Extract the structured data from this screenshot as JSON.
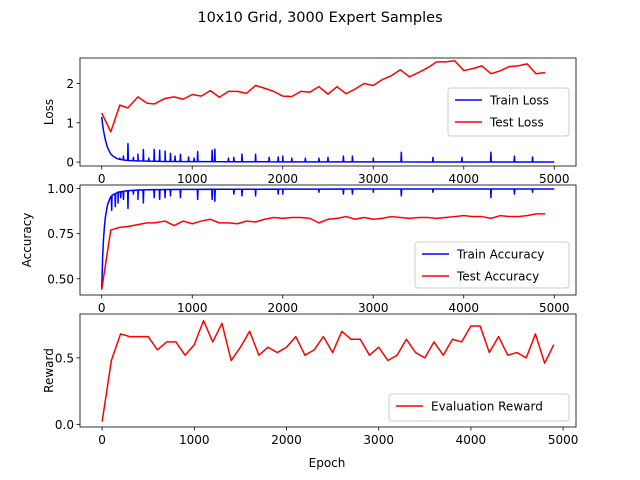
{
  "figure": {
    "title": "10x10 Grid, 3000 Expert Samples"
  },
  "chart_data": [
    {
      "type": "line",
      "ylabel": "Loss",
      "xlim": [
        -240,
        5240
      ],
      "ylim": [
        -0.1,
        2.65
      ],
      "xticks": [
        0,
        1000,
        2000,
        3000,
        4000,
        5000
      ],
      "yticks": [
        0,
        1,
        2
      ],
      "show_xticklabels": true,
      "legend_position": "center-right",
      "series": [
        {
          "name": "Train Loss",
          "color": "#0000ff",
          "style": "spiky_decay",
          "x": [
            0,
            10,
            20,
            30,
            40,
            50,
            60,
            70,
            80,
            90,
            100,
            120,
            140,
            160,
            180,
            200,
            250,
            300,
            400,
            500,
            600,
            700,
            800,
            1000,
            1500,
            2000,
            3000,
            4000,
            5000
          ],
          "y": [
            1.15,
            0.95,
            0.8,
            0.68,
            0.57,
            0.48,
            0.4,
            0.34,
            0.29,
            0.25,
            0.21,
            0.16,
            0.13,
            0.1,
            0.08,
            0.07,
            0.05,
            0.04,
            0.03,
            0.025,
            0.02,
            0.016,
            0.014,
            0.012,
            0.008,
            0.006,
            0.004,
            0.003,
            0.002
          ],
          "spikes": [
            {
              "x": 150,
              "y": 0.12
            },
            {
              "x": 200,
              "y": 0.1
            },
            {
              "x": 240,
              "y": 0.15
            },
            {
              "x": 290,
              "y": 0.47
            },
            {
              "x": 350,
              "y": 0.12
            },
            {
              "x": 400,
              "y": 0.2
            },
            {
              "x": 460,
              "y": 0.32
            },
            {
              "x": 520,
              "y": 0.1
            },
            {
              "x": 580,
              "y": 0.32
            },
            {
              "x": 640,
              "y": 0.3
            },
            {
              "x": 700,
              "y": 0.28
            },
            {
              "x": 760,
              "y": 0.22
            },
            {
              "x": 810,
              "y": 0.15
            },
            {
              "x": 870,
              "y": 0.2
            },
            {
              "x": 960,
              "y": 0.13
            },
            {
              "x": 1020,
              "y": 0.1
            },
            {
              "x": 1060,
              "y": 0.27
            },
            {
              "x": 1220,
              "y": 0.3
            },
            {
              "x": 1250,
              "y": 0.33
            },
            {
              "x": 1400,
              "y": 0.1
            },
            {
              "x": 1460,
              "y": 0.12
            },
            {
              "x": 1550,
              "y": 0.2
            },
            {
              "x": 1700,
              "y": 0.2
            },
            {
              "x": 1850,
              "y": 0.12
            },
            {
              "x": 1950,
              "y": 0.13
            },
            {
              "x": 2000,
              "y": 0.15
            },
            {
              "x": 2100,
              "y": 0.1
            },
            {
              "x": 2250,
              "y": 0.1
            },
            {
              "x": 2400,
              "y": 0.1
            },
            {
              "x": 2500,
              "y": 0.12
            },
            {
              "x": 2670,
              "y": 0.15
            },
            {
              "x": 2770,
              "y": 0.15
            },
            {
              "x": 3000,
              "y": 0.1
            },
            {
              "x": 3310,
              "y": 0.25
            },
            {
              "x": 3660,
              "y": 0.12
            },
            {
              "x": 3980,
              "y": 0.12
            },
            {
              "x": 4300,
              "y": 0.25
            },
            {
              "x": 4560,
              "y": 0.15
            },
            {
              "x": 4760,
              "y": 0.13
            }
          ]
        },
        {
          "name": "Test Loss",
          "color": "#ff0000",
          "style": "line",
          "x": [
            0,
            100,
            200,
            290,
            400,
            500,
            580,
            700,
            800,
            900,
            1000,
            1100,
            1200,
            1300,
            1400,
            1500,
            1600,
            1700,
            1800,
            1900,
            2000,
            2100,
            2200,
            2300,
            2400,
            2500,
            2600,
            2700,
            2800,
            2900,
            3000,
            3100,
            3200,
            3300,
            3400,
            3500,
            3600,
            3700,
            3800,
            3900,
            4000,
            4100,
            4200,
            4300,
            4400,
            4500,
            4600,
            4700,
            4800,
            4900
          ],
          "y": [
            1.25,
            0.77,
            1.45,
            1.38,
            1.66,
            1.5,
            1.48,
            1.62,
            1.66,
            1.6,
            1.72,
            1.68,
            1.82,
            1.65,
            1.8,
            1.8,
            1.75,
            1.95,
            1.88,
            1.8,
            1.68,
            1.67,
            1.8,
            1.78,
            1.92,
            1.73,
            1.92,
            1.74,
            1.86,
            2.0,
            1.95,
            2.1,
            2.2,
            2.35,
            2.17,
            2.28,
            2.4,
            2.55,
            2.55,
            2.58,
            2.33,
            2.38,
            2.45,
            2.25,
            2.32,
            2.43,
            2.45,
            2.5,
            2.25,
            2.28
          ]
        }
      ]
    },
    {
      "type": "line",
      "ylabel": "Accuracy",
      "xlim": [
        -240,
        5240
      ],
      "ylim": [
        0.41,
        1.02
      ],
      "xticks": [
        0,
        1000,
        2000,
        3000,
        4000,
        5000
      ],
      "yticks": [
        0.5,
        0.75,
        1.0
      ],
      "ytick_labels": [
        "0.50",
        "0.75",
        "1.00"
      ],
      "show_xticklabels": true,
      "legend_position": "lower-right",
      "series": [
        {
          "name": "Train Accuracy",
          "color": "#0000ff",
          "style": "spiky_rise",
          "x": [
            0,
            10,
            20,
            30,
            40,
            50,
            60,
            70,
            80,
            90,
            100,
            120,
            140,
            160,
            180,
            200,
            250,
            300,
            400,
            500,
            1000,
            2000,
            3000,
            4000,
            5000
          ],
          "y": [
            0.44,
            0.62,
            0.72,
            0.79,
            0.84,
            0.87,
            0.9,
            0.92,
            0.93,
            0.945,
            0.955,
            0.965,
            0.97,
            0.975,
            0.98,
            0.982,
            0.986,
            0.989,
            0.992,
            0.994,
            0.996,
            0.997,
            0.998,
            0.998,
            0.998
          ],
          "spikes": [
            {
              "x": 110,
              "y": 0.88
            },
            {
              "x": 150,
              "y": 0.9
            },
            {
              "x": 180,
              "y": 0.92
            },
            {
              "x": 210,
              "y": 0.95
            },
            {
              "x": 240,
              "y": 0.94
            },
            {
              "x": 290,
              "y": 0.89
            },
            {
              "x": 350,
              "y": 0.97
            },
            {
              "x": 400,
              "y": 0.94
            },
            {
              "x": 460,
              "y": 0.92
            },
            {
              "x": 580,
              "y": 0.95
            },
            {
              "x": 640,
              "y": 0.94
            },
            {
              "x": 700,
              "y": 0.95
            },
            {
              "x": 760,
              "y": 0.96
            },
            {
              "x": 870,
              "y": 0.95
            },
            {
              "x": 1060,
              "y": 0.94
            },
            {
              "x": 1220,
              "y": 0.94
            },
            {
              "x": 1250,
              "y": 0.93
            },
            {
              "x": 1460,
              "y": 0.97
            },
            {
              "x": 1550,
              "y": 0.96
            },
            {
              "x": 1700,
              "y": 0.96
            },
            {
              "x": 1950,
              "y": 0.97
            },
            {
              "x": 2000,
              "y": 0.97
            },
            {
              "x": 2400,
              "y": 0.98
            },
            {
              "x": 2670,
              "y": 0.97
            },
            {
              "x": 2770,
              "y": 0.97
            },
            {
              "x": 3000,
              "y": 0.98
            },
            {
              "x": 3310,
              "y": 0.96
            },
            {
              "x": 3660,
              "y": 0.98
            },
            {
              "x": 4300,
              "y": 0.95
            },
            {
              "x": 4560,
              "y": 0.97
            },
            {
              "x": 4760,
              "y": 0.98
            }
          ]
        },
        {
          "name": "Test Accuracy",
          "color": "#ff0000",
          "style": "line",
          "x": [
            0,
            100,
            200,
            290,
            400,
            500,
            580,
            700,
            800,
            900,
            1000,
            1100,
            1200,
            1300,
            1400,
            1500,
            1600,
            1700,
            1800,
            1900,
            2000,
            2100,
            2200,
            2300,
            2400,
            2500,
            2600,
            2700,
            2800,
            2900,
            3000,
            3100,
            3200,
            3300,
            3400,
            3500,
            3600,
            3700,
            3800,
            3900,
            4000,
            4100,
            4200,
            4300,
            4400,
            4500,
            4600,
            4700,
            4800,
            4900
          ],
          "y": [
            0.44,
            0.77,
            0.785,
            0.79,
            0.8,
            0.81,
            0.81,
            0.82,
            0.795,
            0.82,
            0.805,
            0.82,
            0.83,
            0.81,
            0.81,
            0.805,
            0.82,
            0.815,
            0.83,
            0.84,
            0.835,
            0.84,
            0.84,
            0.835,
            0.81,
            0.83,
            0.835,
            0.845,
            0.83,
            0.84,
            0.83,
            0.835,
            0.845,
            0.84,
            0.835,
            0.84,
            0.84,
            0.835,
            0.84,
            0.845,
            0.85,
            0.845,
            0.845,
            0.835,
            0.85,
            0.845,
            0.845,
            0.85,
            0.86,
            0.86
          ]
        }
      ]
    },
    {
      "type": "line",
      "ylabel": "Reward",
      "xlabel": "Epoch",
      "xlim": [
        -240,
        5140
      ],
      "ylim": [
        -0.02,
        0.83
      ],
      "xticks": [
        0,
        1000,
        2000,
        3000,
        4000,
        5000
      ],
      "yticks": [
        0.0,
        0.5
      ],
      "ytick_labels": [
        "0.0",
        "0.5"
      ],
      "show_xticklabels": true,
      "legend_position": "lower-right",
      "series": [
        {
          "name": "Evaluation Reward",
          "color": "#ff0000",
          "style": "line",
          "x": [
            0,
            100,
            200,
            300,
            400,
            500,
            600,
            700,
            800,
            900,
            1000,
            1100,
            1200,
            1300,
            1400,
            1500,
            1600,
            1700,
            1800,
            1900,
            2000,
            2100,
            2200,
            2300,
            2400,
            2500,
            2600,
            2700,
            2800,
            2900,
            3000,
            3100,
            3200,
            3300,
            3400,
            3500,
            3600,
            3700,
            3800,
            3900,
            4000,
            4100,
            4200,
            4300,
            4400,
            4500,
            4600,
            4700,
            4800,
            4900
          ],
          "y": [
            0.02,
            0.48,
            0.68,
            0.66,
            0.66,
            0.66,
            0.56,
            0.62,
            0.62,
            0.52,
            0.6,
            0.78,
            0.62,
            0.76,
            0.48,
            0.58,
            0.7,
            0.52,
            0.58,
            0.54,
            0.58,
            0.66,
            0.52,
            0.56,
            0.66,
            0.54,
            0.7,
            0.64,
            0.64,
            0.52,
            0.58,
            0.48,
            0.52,
            0.64,
            0.54,
            0.5,
            0.62,
            0.52,
            0.64,
            0.62,
            0.74,
            0.74,
            0.54,
            0.66,
            0.52,
            0.54,
            0.5,
            0.68,
            0.46,
            0.6
          ]
        }
      ]
    }
  ]
}
